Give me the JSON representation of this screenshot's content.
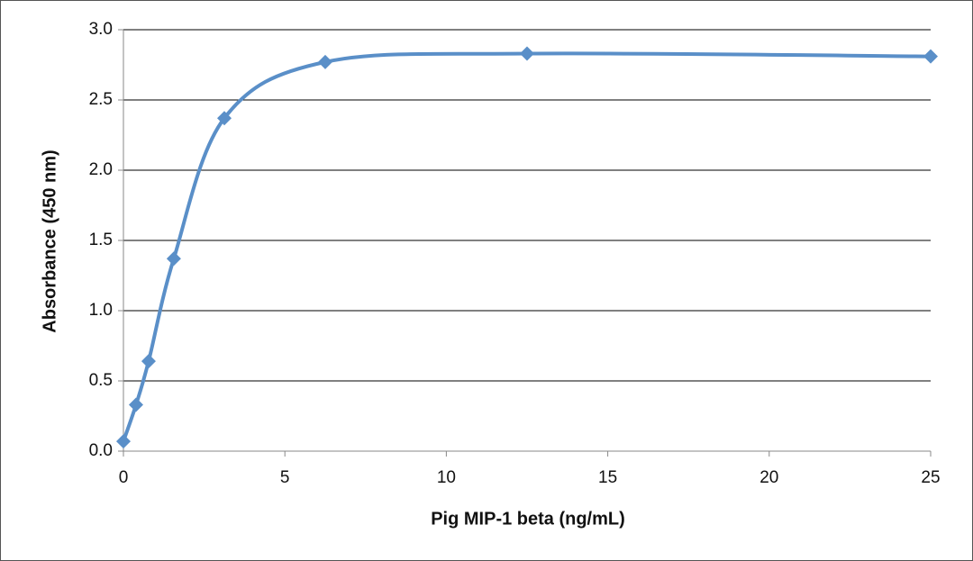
{
  "chart_data": {
    "type": "scatter",
    "x_label": "Pig MIP-1 beta (ng/mL)",
    "y_label": "Absorbance  (450  nm)",
    "series": [
      {
        "color": "#5a8fc8",
        "x": [
          0,
          0.39,
          0.78,
          1.56,
          3.125,
          6.25,
          12.5,
          25
        ],
        "values": [
          0.07,
          0.33,
          0.64,
          1.37,
          2.37,
          2.77,
          2.83,
          2.81
        ]
      }
    ],
    "xlim": [
      0,
      25
    ],
    "xticks": [
      0,
      5,
      10,
      15,
      20,
      25
    ],
    "ylim": [
      0,
      3
    ],
    "yticks": [
      {
        "value": 0,
        "label": "0.0"
      },
      0.5,
      {
        "value": 1,
        "label": "1.0"
      },
      1.5,
      {
        "value": 2,
        "label": "2.0"
      },
      2.5,
      {
        "value": 3,
        "label": "3.0"
      }
    ],
    "grid": true,
    "smooth": true
  }
}
